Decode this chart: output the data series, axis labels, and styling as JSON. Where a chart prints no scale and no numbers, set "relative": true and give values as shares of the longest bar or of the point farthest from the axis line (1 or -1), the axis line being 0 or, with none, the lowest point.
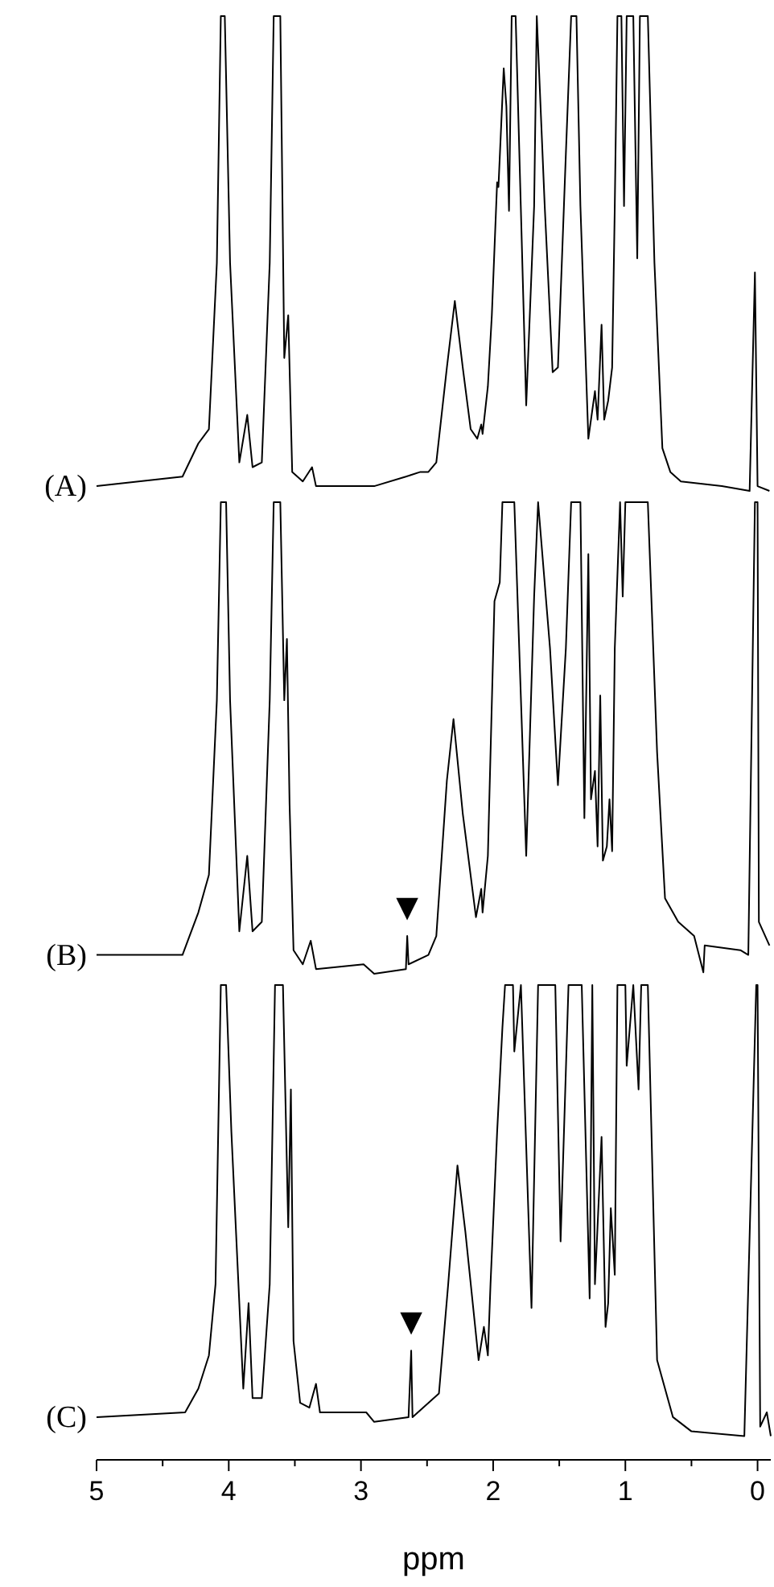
{
  "chart_data": [
    {
      "type": "line",
      "relative": true,
      "xlim": [
        5,
        -0.1
      ],
      "series": [
        {
          "name": "(A)",
          "color": "#000000",
          "x": [
            5.0,
            4.35,
            4.23,
            4.15,
            4.09,
            4.06,
            4.03,
            3.99,
            3.92,
            3.86,
            3.82,
            3.75,
            3.69,
            3.66,
            3.61,
            3.58,
            3.55,
            3.52,
            3.44,
            3.37,
            3.34,
            2.9,
            2.66,
            2.55,
            2.49,
            2.43,
            2.35,
            2.29,
            2.23,
            2.17,
            2.12,
            2.09,
            2.08,
            2.04,
            2.01,
            1.97,
            1.96,
            1.92,
            1.9,
            1.88,
            1.86,
            1.83,
            1.75,
            1.69,
            1.67,
            1.61,
            1.55,
            1.51,
            1.45,
            1.41,
            1.37,
            1.34,
            1.28,
            1.23,
            1.21,
            1.18,
            1.16,
            1.13,
            1.1,
            1.08,
            1.06,
            1.03,
            1.01,
            0.99,
            0.94,
            0.91,
            0.89,
            0.83,
            0.78,
            0.72,
            0.66,
            0.58,
            0.27,
            0.06,
            0.02,
            0.0,
            -0.09
          ],
          "values": [
            0.01,
            0.03,
            0.1,
            0.13,
            0.48,
            1,
            1,
            0.48,
            0.06,
            0.16,
            0.05,
            0.06,
            0.48,
            1,
            1,
            0.28,
            0.37,
            0.04,
            0.02,
            0.05,
            0.01,
            0.01,
            0.03,
            0.04,
            0.04,
            0.06,
            0.26,
            0.4,
            0.26,
            0.13,
            0.11,
            0.14,
            0.12,
            0.22,
            0.37,
            0.65,
            0.64,
            0.89,
            0.81,
            0.59,
            1,
            1,
            0.18,
            0.6,
            1,
            0.6,
            0.25,
            0.26,
            0.71,
            1,
            1,
            0.6,
            0.11,
            0.21,
            0.15,
            0.35,
            0.15,
            0.19,
            0.26,
            0.6,
            1,
            1,
            0.6,
            1,
            1,
            0.49,
            1,
            1,
            0.48,
            0.09,
            0.04,
            0.02,
            0.01,
            0,
            0.46,
            0.01,
            0
          ]
        }
      ]
    },
    {
      "type": "line",
      "relative": true,
      "xlim": [
        5,
        -0.1
      ],
      "annotations": [
        {
          "text": "▼",
          "x": 2.65,
          "y": 0.08
        }
      ],
      "series": [
        {
          "name": "(B)",
          "color": "#000000",
          "x": [
            5.0,
            4.35,
            4.23,
            4.15,
            4.09,
            4.06,
            4.02,
            3.99,
            3.92,
            3.86,
            3.82,
            3.75,
            3.69,
            3.66,
            3.61,
            3.58,
            3.56,
            3.54,
            3.51,
            3.44,
            3.38,
            3.34,
            2.98,
            2.9,
            2.66,
            2.65,
            2.64,
            2.49,
            2.43,
            2.35,
            2.3,
            2.23,
            2.13,
            2.09,
            2.08,
            2.04,
            1.99,
            1.95,
            1.93,
            1.88,
            1.84,
            1.75,
            1.69,
            1.66,
            1.57,
            1.51,
            1.45,
            1.41,
            1.34,
            1.31,
            1.28,
            1.26,
            1.23,
            1.21,
            1.19,
            1.17,
            1.14,
            1.12,
            1.1,
            1.08,
            1.04,
            1.02,
            1.0,
            0.83,
            0.76,
            0.7,
            0.6,
            0.48,
            0.41,
            0.4,
            0.13,
            0.07,
            0.02,
            0.0,
            -0.01,
            -0.09
          ],
          "values": [
            0.04,
            0.04,
            0.13,
            0.21,
            0.58,
            1,
            1,
            0.58,
            0.09,
            0.25,
            0.09,
            0.11,
            0.58,
            1,
            1,
            0.58,
            0.71,
            0.36,
            0.05,
            0.02,
            0.07,
            0.01,
            0.02,
            0,
            0.01,
            0.08,
            0.02,
            0.04,
            0.08,
            0.41,
            0.54,
            0.34,
            0.12,
            0.18,
            0.13,
            0.25,
            0.79,
            0.83,
            1,
            1,
            1,
            0.25,
            0.8,
            1,
            0.69,
            0.4,
            0.69,
            1,
            1,
            0.33,
            0.89,
            0.37,
            0.43,
            0.27,
            0.59,
            0.24,
            0.27,
            0.37,
            0.26,
            0.69,
            1,
            0.8,
            1,
            1,
            0.47,
            0.16,
            0.11,
            0.08,
            0.003,
            0.06,
            0.05,
            0.04,
            1,
            1,
            0.11,
            0.06
          ]
        }
      ]
    },
    {
      "type": "line",
      "relative": true,
      "xlim": [
        5,
        -0.1
      ],
      "xticks": [
        5,
        {
          "value": 4.5,
          "label": null
        },
        4,
        {
          "value": 3.5,
          "label": null
        },
        3,
        {
          "value": 2.5,
          "label": null
        },
        2,
        {
          "value": 1.5,
          "label": null
        },
        1,
        {
          "value": 0.5,
          "label": null
        },
        0
      ],
      "xlabel": "ppm",
      "annotations": [
        {
          "text": "▼",
          "x": 2.62,
          "y": 0.23
        }
      ],
      "series": [
        {
          "name": "(C)",
          "color": "#000000",
          "x": [
            5.0,
            4.33,
            4.23,
            4.15,
            4.1,
            4.06,
            4.02,
            3.98,
            3.89,
            3.85,
            3.82,
            3.75,
            3.69,
            3.65,
            3.59,
            3.55,
            3.53,
            3.51,
            3.46,
            3.39,
            3.34,
            3.31,
            2.96,
            2.9,
            2.64,
            2.62,
            2.61,
            2.41,
            2.34,
            2.27,
            2.21,
            2.11,
            2.07,
            2.04,
            2.02,
            1.97,
            1.93,
            1.91,
            1.85,
            1.84,
            1.79,
            1.71,
            1.66,
            1.53,
            1.49,
            1.43,
            1.33,
            1.27,
            1.25,
            1.23,
            1.18,
            1.15,
            1.13,
            1.11,
            1.08,
            1.06,
            1.0,
            0.99,
            0.94,
            0.9,
            0.88,
            0.83,
            0.76,
            0.64,
            0.5,
            0.1,
            0.01,
            0.0,
            -0.02,
            -0.07,
            -0.1
          ],
          "values": [
            0.09,
            0.1,
            0.15,
            0.22,
            0.37,
            1,
            1,
            0.69,
            0.15,
            0.33,
            0.13,
            0.13,
            0.37,
            1,
            1,
            0.49,
            0.78,
            0.25,
            0.12,
            0.11,
            0.16,
            0.1,
            0.1,
            0.08,
            0.09,
            0.23,
            0.09,
            0.14,
            0.37,
            0.62,
            0.48,
            0.21,
            0.28,
            0.22,
            0.37,
            0.69,
            0.91,
            1,
            1,
            0.86,
            1,
            0.32,
            1,
            1,
            0.46,
            1,
            1,
            0.34,
            1,
            0.37,
            0.68,
            0.28,
            0.33,
            0.53,
            0.39,
            1,
            1,
            0.83,
            1,
            0.78,
            1,
            1,
            0.21,
            0.09,
            0.06,
            0.05,
            1,
            1,
            0.07,
            0.1,
            0.05
          ]
        }
      ]
    }
  ]
}
